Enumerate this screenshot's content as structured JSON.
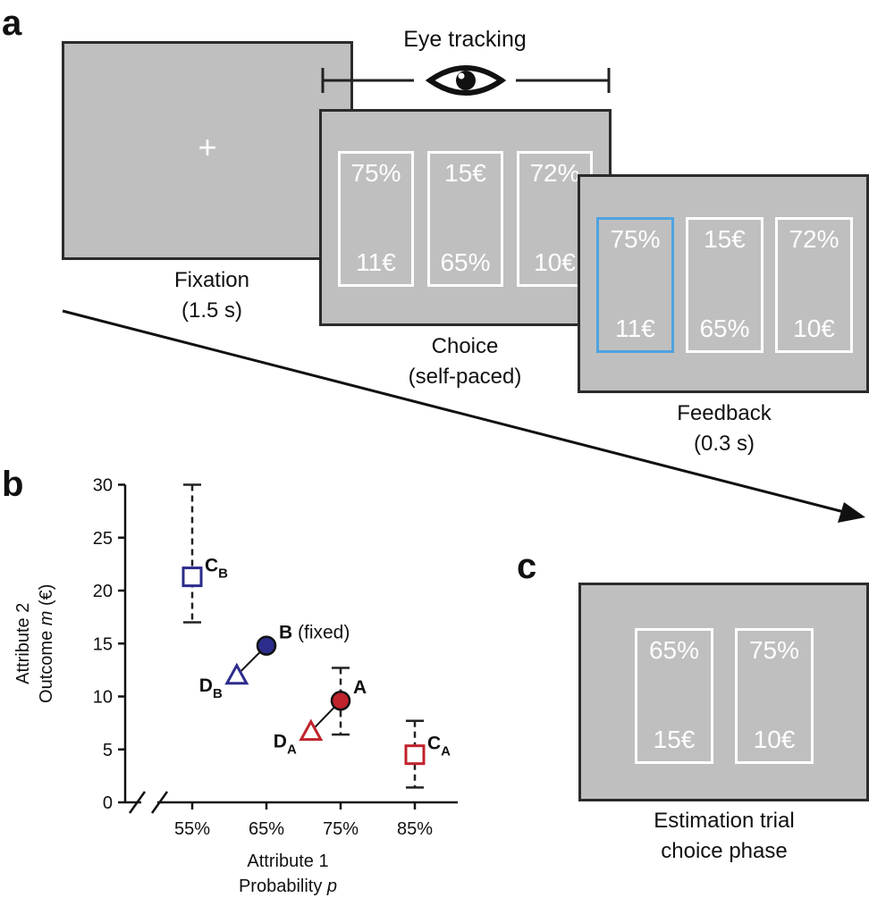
{
  "panel_a": {
    "letter": "a",
    "eye_tracking": "Eye tracking",
    "fixation": {
      "symbol": "+",
      "caption1": "Fixation",
      "caption2": "(1.5 s)"
    },
    "choice": {
      "caption1": "Choice",
      "caption2": "(self-paced)",
      "cards": [
        {
          "top": "75%",
          "bottom": "11€"
        },
        {
          "top": "15€",
          "bottom": "65%"
        },
        {
          "top": "72%",
          "bottom": "10€"
        }
      ]
    },
    "feedback": {
      "caption1": "Feedback",
      "caption2": "(0.3 s)",
      "cards": [
        {
          "top": "75%",
          "bottom": "11€"
        },
        {
          "top": "15€",
          "bottom": "65%"
        },
        {
          "top": "72%",
          "bottom": "10€"
        }
      ]
    },
    "colors": {
      "screen": "#bfbfbf",
      "selected_border": "#4fa3e0"
    }
  },
  "panel_b": {
    "letter": "b"
  },
  "panel_c": {
    "letter": "c",
    "caption1": "Estimation trial",
    "caption2": "choice phase",
    "cards": [
      {
        "top": "65%",
        "bottom": "15€"
      },
      {
        "top": "75%",
        "bottom": "10€"
      }
    ]
  },
  "chart_data": {
    "type": "scatter",
    "xlabel_line1": "Attribute 1",
    "xlabel_line2": "Probability",
    "xlabel_var": "p",
    "ylabel_line1": "Attribute 2",
    "ylabel_line2": "Outcome",
    "ylabel_var": "m",
    "ylabel_unit": "(€)",
    "x_ticks": [
      55,
      65,
      75,
      85
    ],
    "x_tick_labels": [
      "55%",
      "65%",
      "75%",
      "85%"
    ],
    "y_ticks": [
      0,
      5,
      10,
      15,
      20,
      25,
      30
    ],
    "y_tick_labels": [
      "0",
      "5",
      "10",
      "15",
      "20",
      "25",
      "30"
    ],
    "xlim": [
      55,
      85
    ],
    "ylim": [
      0,
      30
    ],
    "colors": {
      "red": "#c0232c",
      "blue": "#2c2c8c"
    },
    "points": [
      {
        "id": "A",
        "label": "A",
        "sub": "",
        "marker": "circle",
        "color": "red",
        "x": 75,
        "y": 9.6
      },
      {
        "id": "B",
        "label": "B",
        "sub": "",
        "extra": "(fixed)",
        "marker": "circle",
        "color": "blue",
        "x": 65,
        "y": 14.8
      },
      {
        "id": "CA",
        "label": "C",
        "sub": "A",
        "marker": "square",
        "color": "red",
        "x": 85,
        "y": 4.5,
        "err": [
          1.4,
          7.7
        ]
      },
      {
        "id": "CB",
        "label": "C",
        "sub": "B",
        "marker": "square",
        "color": "blue",
        "x": 55,
        "y": 21.3,
        "err": [
          17.0,
          30.0
        ]
      },
      {
        "id": "DA",
        "label": "D",
        "sub": "A",
        "marker": "triangle",
        "color": "red",
        "x": 71,
        "y": 6.7
      },
      {
        "id": "DB",
        "label": "D",
        "sub": "B",
        "marker": "triangle",
        "color": "blue",
        "x": 61,
        "y": 12.0
      }
    ],
    "error_bars_extra": [
      {
        "x": 75,
        "err": [
          6.4,
          12.7
        ]
      }
    ],
    "lines": [
      {
        "from": "DB",
        "to": "B"
      },
      {
        "from": "DA",
        "to": "A"
      }
    ]
  }
}
